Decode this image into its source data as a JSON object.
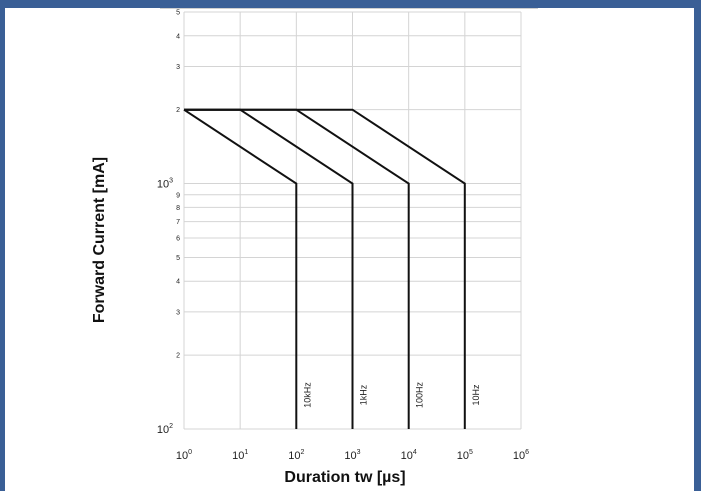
{
  "chart_data": {
    "type": "line",
    "title": "",
    "xlabel": "Duration tw [µs]",
    "ylabel": "Forward Current [mA]",
    "x_scale": "log",
    "y_scale": "log",
    "xlim": [
      1,
      1000000
    ],
    "ylim": [
      100,
      5000
    ],
    "grid": true,
    "x_ticks": [
      {
        "value": 1,
        "base": "10",
        "exp": "0"
      },
      {
        "value": 10,
        "base": "10",
        "exp": "1"
      },
      {
        "value": 100,
        "base": "10",
        "exp": "2"
      },
      {
        "value": 1000,
        "base": "10",
        "exp": "3"
      },
      {
        "value": 10000,
        "base": "10",
        "exp": "4"
      },
      {
        "value": 100000,
        "base": "10",
        "exp": "5"
      },
      {
        "value": 1000000,
        "base": "10",
        "exp": "6"
      }
    ],
    "y_ticks": [
      {
        "value": 100,
        "base": "10",
        "exp": "2"
      },
      {
        "value": 200,
        "label": "2"
      },
      {
        "value": 300,
        "label": "3"
      },
      {
        "value": 400,
        "label": "4"
      },
      {
        "value": 500,
        "label": "5"
      },
      {
        "value": 600,
        "label": "6"
      },
      {
        "value": 700,
        "label": "7"
      },
      {
        "value": 800,
        "label": "8"
      },
      {
        "value": 900,
        "label": "9"
      },
      {
        "value": 1000,
        "base": "10",
        "exp": "3"
      },
      {
        "value": 2000,
        "label": "2"
      },
      {
        "value": 3000,
        "label": "3"
      },
      {
        "value": 4000,
        "label": "4"
      },
      {
        "value": 5000,
        "label": "5"
      }
    ],
    "series": [
      {
        "name": "10kHz",
        "x": [
          1,
          100,
          100
        ],
        "y": [
          2000,
          1000,
          100
        ]
      },
      {
        "name": "1kHz",
        "x": [
          1,
          10,
          1000,
          1000
        ],
        "y": [
          2000,
          2000,
          1000,
          100
        ]
      },
      {
        "name": "100Hz",
        "x": [
          1,
          100,
          10000,
          10000
        ],
        "y": [
          2000,
          2000,
          1000,
          100
        ]
      },
      {
        "name": "10Hz",
        "x": [
          1,
          1000,
          100000,
          100000
        ],
        "y": [
          2000,
          2000,
          1000,
          100
        ]
      }
    ],
    "colors": {
      "line": "#111111",
      "grid": "#d4d4d4",
      "frame_accent": "#3a5f96"
    }
  }
}
